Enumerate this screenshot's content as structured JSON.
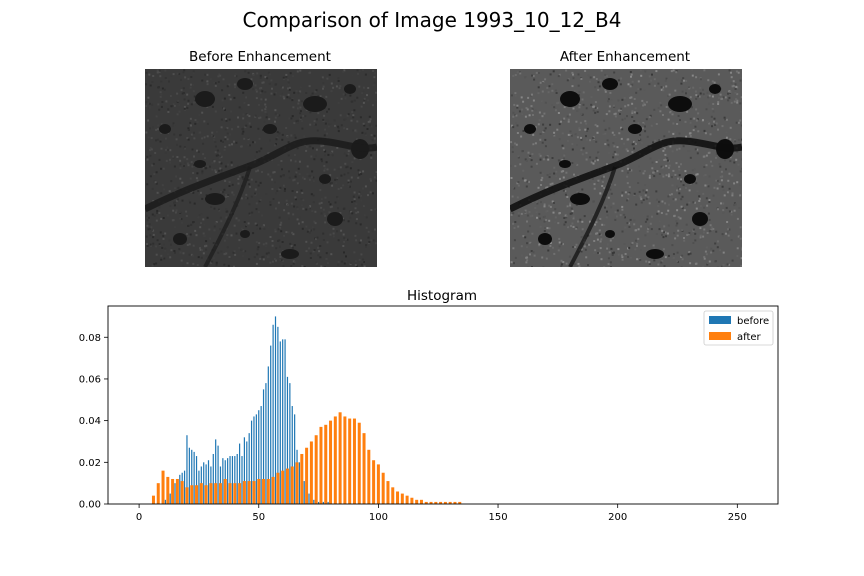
{
  "figure": {
    "title": "Comparison of Image 1993_10_12_B4"
  },
  "images": [
    {
      "title": "Before Enhancement"
    },
    {
      "title": "After Enhancement"
    }
  ],
  "colors": {
    "before": "#1f77b4",
    "after": "#ff7f0e",
    "before_image_bg": "#3a3a3a",
    "after_image_bg": "#5a5a5a"
  },
  "chart_data": {
    "type": "bar",
    "title": "Histogram",
    "xlabel": "",
    "ylabel": "",
    "xlim": [
      -13,
      267
    ],
    "ylim": [
      0,
      0.095
    ],
    "xticks": [
      0,
      50,
      100,
      150,
      200,
      250
    ],
    "yticks": [
      0.0,
      0.02,
      0.04,
      0.06,
      0.08
    ],
    "ytick_labels": [
      "0.00",
      "0.02",
      "0.04",
      "0.06",
      "0.08"
    ],
    "legend_position": "top-right",
    "grid": false,
    "series": [
      {
        "name": "before",
        "x": [
          10,
          11,
          12,
          13,
          14,
          15,
          16,
          17,
          18,
          19,
          20,
          21,
          22,
          23,
          24,
          25,
          26,
          27,
          28,
          29,
          30,
          31,
          32,
          33,
          34,
          35,
          36,
          37,
          38,
          39,
          40,
          41,
          42,
          43,
          44,
          45,
          46,
          47,
          48,
          49,
          50,
          51,
          52,
          53,
          54,
          55,
          56,
          57,
          58,
          59,
          60,
          61,
          62,
          63,
          64,
          65,
          66,
          67,
          68,
          69,
          70,
          71,
          72,
          73,
          74,
          75,
          76,
          77,
          78,
          79,
          80
        ],
        "values": [
          0.001,
          0.002,
          0.003,
          0.005,
          0.008,
          0.01,
          0.012,
          0.014,
          0.015,
          0.016,
          0.033,
          0.027,
          0.026,
          0.025,
          0.023,
          0.016,
          0.018,
          0.02,
          0.019,
          0.021,
          0.018,
          0.024,
          0.031,
          0.028,
          0.018,
          0.022,
          0.021,
          0.022,
          0.023,
          0.023,
          0.023,
          0.024,
          0.029,
          0.023,
          0.032,
          0.03,
          0.034,
          0.04,
          0.042,
          0.043,
          0.045,
          0.047,
          0.055,
          0.058,
          0.066,
          0.076,
          0.086,
          0.09,
          0.085,
          0.078,
          0.079,
          0.079,
          0.061,
          0.058,
          0.047,
          0.043,
          0.026,
          0.02,
          0.015,
          0.011,
          0.007,
          0.005,
          0.003,
          0.002,
          0.001,
          0.001,
          0.001,
          0.001,
          0.001,
          0.001,
          0.001
        ]
      },
      {
        "name": "after",
        "x": [
          6,
          8,
          10,
          12,
          14,
          16,
          18,
          20,
          22,
          24,
          26,
          28,
          30,
          32,
          34,
          36,
          38,
          40,
          42,
          44,
          46,
          48,
          50,
          52,
          54,
          56,
          58,
          60,
          62,
          64,
          66,
          68,
          70,
          72,
          74,
          76,
          78,
          80,
          82,
          84,
          86,
          88,
          90,
          92,
          94,
          96,
          98,
          100,
          102,
          104,
          106,
          108,
          110,
          112,
          114,
          116,
          118,
          120,
          122,
          124,
          126,
          128,
          130,
          132,
          134
        ],
        "values": [
          0.004,
          0.01,
          0.016,
          0.013,
          0.012,
          0.012,
          0.011,
          0.008,
          0.009,
          0.009,
          0.01,
          0.009,
          0.01,
          0.01,
          0.01,
          0.012,
          0.01,
          0.01,
          0.01,
          0.011,
          0.011,
          0.011,
          0.012,
          0.012,
          0.012,
          0.013,
          0.015,
          0.016,
          0.017,
          0.018,
          0.02,
          0.024,
          0.027,
          0.03,
          0.033,
          0.037,
          0.038,
          0.04,
          0.042,
          0.044,
          0.042,
          0.041,
          0.041,
          0.039,
          0.034,
          0.026,
          0.021,
          0.019,
          0.015,
          0.011,
          0.008,
          0.006,
          0.005,
          0.004,
          0.003,
          0.002,
          0.002,
          0.001,
          0.001,
          0.001,
          0.001,
          0.001,
          0.001,
          0.001,
          0.001
        ]
      }
    ]
  }
}
